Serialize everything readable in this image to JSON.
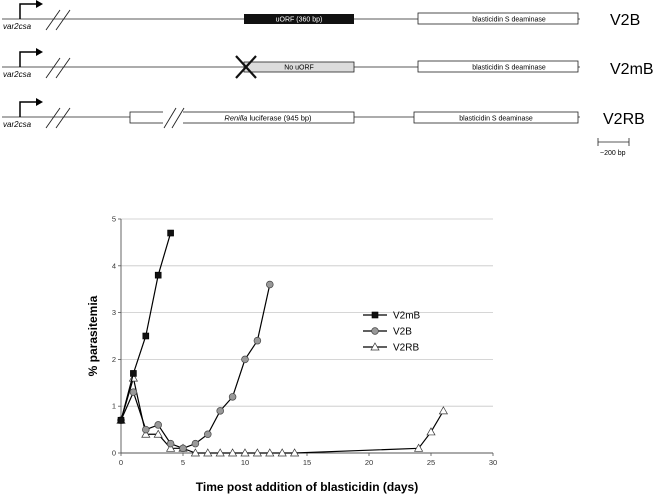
{
  "constructs": [
    {
      "name": "V2B",
      "promoter": "var2csa",
      "element": "uORF (360 bp)",
      "reporter": "blasticidin S  deaminase"
    },
    {
      "name": "V2mB",
      "promoter": "var2csa",
      "element": "No uORF",
      "reporter": "blasticidin S  deaminase"
    },
    {
      "name": "V2RB",
      "promoter": "var2csa",
      "element_italic": "Renilla",
      "element_rest": " luciferase (945 bp)",
      "reporter": "blasticidin S  deaminase"
    }
  ],
  "scale_bar": {
    "label": "~200 bp"
  },
  "chart_data": {
    "type": "line",
    "xlabel": "Time post addition of blasticidin (days)",
    "ylabel": "% parasitemia",
    "xlim": [
      0,
      30
    ],
    "ylim": [
      0,
      5
    ],
    "xticks": [
      0,
      5,
      10,
      15,
      20,
      25,
      30
    ],
    "yticks": [
      0,
      1,
      2,
      3,
      4,
      5
    ],
    "grid": "horizontal",
    "legend_position": "center-right",
    "series": [
      {
        "name": "V2mB",
        "marker": "square",
        "color": "#111111",
        "x": [
          0,
          1,
          2,
          3,
          4
        ],
        "y": [
          0.7,
          1.7,
          2.5,
          3.8,
          4.7
        ]
      },
      {
        "name": "V2B",
        "marker": "circle",
        "color": "#999999",
        "x": [
          0,
          1,
          2,
          3,
          4,
          5,
          6,
          7,
          8,
          9,
          10,
          11,
          12
        ],
        "y": [
          0.7,
          1.3,
          0.5,
          0.6,
          0.2,
          0.1,
          0.2,
          0.4,
          0.9,
          1.2,
          2.0,
          2.4,
          3.6
        ]
      },
      {
        "name": "V2RB",
        "marker": "triangle",
        "color": "#ffffff",
        "x": [
          0,
          1,
          2,
          3,
          4,
          5,
          6,
          7,
          8,
          9,
          10,
          11,
          12,
          13,
          14,
          24,
          25,
          26
        ],
        "y": [
          0.7,
          1.6,
          0.4,
          0.4,
          0.1,
          0.1,
          0,
          0,
          0,
          0,
          0,
          0,
          0,
          0,
          0,
          0.1,
          0.45,
          0.9
        ]
      }
    ]
  }
}
